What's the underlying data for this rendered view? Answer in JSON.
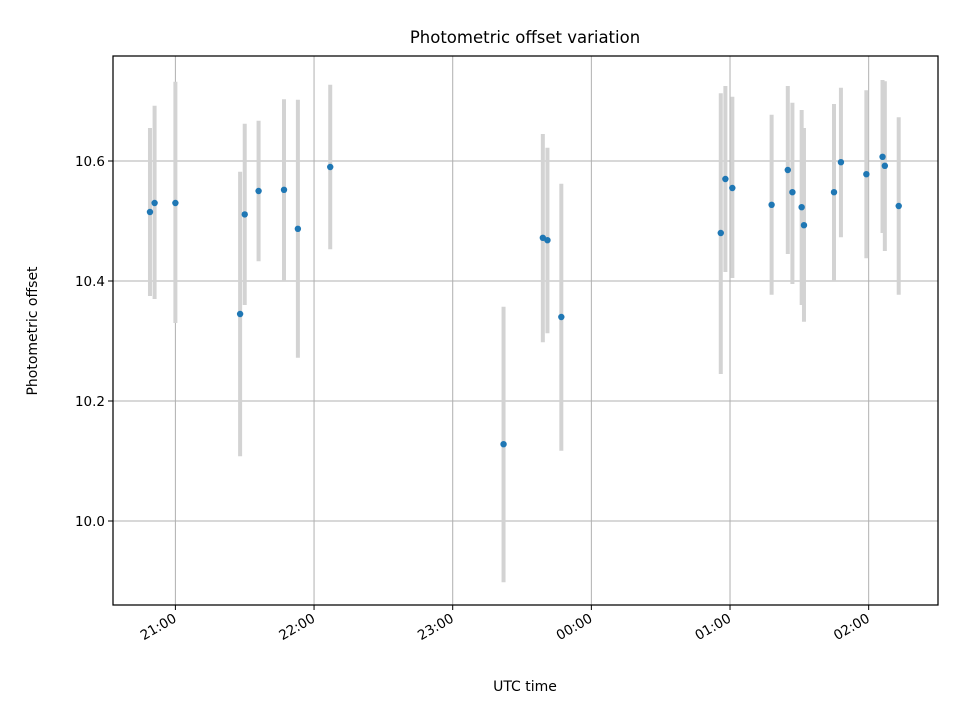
{
  "chart_data": {
    "type": "scatter",
    "title": "Photometric offset variation",
    "xlabel": "UTC time",
    "ylabel": "Photometric offset",
    "xlim": [
      "20:33",
      "02:30"
    ],
    "ylim": [
      9.86,
      10.775
    ],
    "x_ticks": [
      "21:00",
      "22:00",
      "23:00",
      "00:00",
      "01:00",
      "02:00"
    ],
    "y_ticks": [
      10.0,
      10.2,
      10.4,
      10.6
    ],
    "y_tick_labels": [
      "10.0",
      "10.2",
      "10.4",
      "10.6"
    ],
    "grid": true,
    "errorbar_color": "#d3d3d3",
    "marker_color": "#1f77b4",
    "points": [
      {
        "x": "20:49",
        "y": 10.515,
        "y_low": 10.375,
        "y_high": 10.655
      },
      {
        "x": "20:51",
        "y": 10.53,
        "y_low": 10.37,
        "y_high": 10.692
      },
      {
        "x": "21:00",
        "y": 10.53,
        "y_low": 10.33,
        "y_high": 10.732
      },
      {
        "x": "21:28",
        "y": 10.345,
        "y_low": 10.108,
        "y_high": 10.582
      },
      {
        "x": "21:30",
        "y": 10.511,
        "y_low": 10.36,
        "y_high": 10.662
      },
      {
        "x": "21:36",
        "y": 10.55,
        "y_low": 10.433,
        "y_high": 10.667
      },
      {
        "x": "21:47",
        "y": 10.552,
        "y_low": 10.4,
        "y_high": 10.703
      },
      {
        "x": "21:53",
        "y": 10.487,
        "y_low": 10.272,
        "y_high": 10.702
      },
      {
        "x": "22:07",
        "y": 10.59,
        "y_low": 10.453,
        "y_high": 10.727
      },
      {
        "x": "23:22",
        "y": 10.128,
        "y_low": 9.898,
        "y_high": 10.357
      },
      {
        "x": "23:39",
        "y": 10.472,
        "y_low": 10.298,
        "y_high": 10.645
      },
      {
        "x": "23:41",
        "y": 10.468,
        "y_low": 10.313,
        "y_high": 10.622
      },
      {
        "x": "23:47",
        "y": 10.34,
        "y_low": 10.117,
        "y_high": 10.562
      },
      {
        "x": "00:56",
        "y": 10.48,
        "y_low": 10.245,
        "y_high": 10.713
      },
      {
        "x": "00:58",
        "y": 10.57,
        "y_low": 10.415,
        "y_high": 10.725
      },
      {
        "x": "01:01",
        "y": 10.555,
        "y_low": 10.405,
        "y_high": 10.707
      },
      {
        "x": "01:18",
        "y": 10.527,
        "y_low": 10.377,
        "y_high": 10.677
      },
      {
        "x": "01:25",
        "y": 10.585,
        "y_low": 10.445,
        "y_high": 10.725
      },
      {
        "x": "01:27",
        "y": 10.548,
        "y_low": 10.395,
        "y_high": 10.697
      },
      {
        "x": "01:31",
        "y": 10.523,
        "y_low": 10.36,
        "y_high": 10.685
      },
      {
        "x": "01:32",
        "y": 10.493,
        "y_low": 10.332,
        "y_high": 10.655
      },
      {
        "x": "01:45",
        "y": 10.548,
        "y_low": 10.4,
        "y_high": 10.695
      },
      {
        "x": "01:48",
        "y": 10.598,
        "y_low": 10.473,
        "y_high": 10.722
      },
      {
        "x": "01:59",
        "y": 10.578,
        "y_low": 10.438,
        "y_high": 10.718
      },
      {
        "x": "02:06",
        "y": 10.607,
        "y_low": 10.48,
        "y_high": 10.735
      },
      {
        "x": "02:07",
        "y": 10.592,
        "y_low": 10.45,
        "y_high": 10.733
      },
      {
        "x": "02:13",
        "y": 10.525,
        "y_low": 10.377,
        "y_high": 10.673
      }
    ]
  }
}
